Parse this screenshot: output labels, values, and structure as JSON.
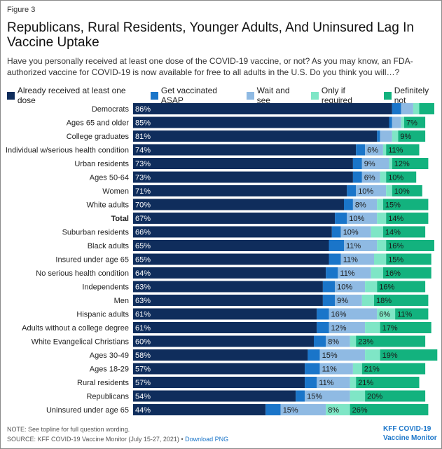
{
  "figure_label": "Figure 3",
  "chart_data": {
    "type": "stacked-bar-horizontal",
    "title": "Republicans, Rural Residents, Younger Adults, And Uninsured Lag In Vaccine Uptake",
    "subtitle": "Have you personally received at least one dose of the COVID-19 vaccine, or not? As you may know, an FDA-authorized vaccine for COVID-19 is now available for free to all adults in the U.S. Do you think you will…?",
    "categories": [
      "Democrats",
      "Ages 65 and older",
      "College graduates",
      "Individual w/serious health condition",
      "Urban residents",
      "Ages 50-64",
      "Women",
      "White adults",
      "Total",
      "Suburban residents",
      "Black adults",
      "Insured under age 65",
      "No serious health condition",
      "Independents",
      "Men",
      "Hispanic adults",
      "Adults without a college degree",
      "White Evangelical Christians",
      "Ages 30-49",
      "Ages 18-29",
      "Rural residents",
      "Republicans",
      "Uninsured under age 65"
    ],
    "series": [
      {
        "name": "Already received at least one dose",
        "color": "#0f2d5c",
        "values": [
          86,
          85,
          81,
          74,
          73,
          73,
          71,
          70,
          67,
          66,
          65,
          65,
          64,
          63,
          63,
          61,
          61,
          60,
          58,
          57,
          57,
          54,
          44
        ],
        "value_labels": [
          "86%",
          "85%",
          "81%",
          "74%",
          "73%",
          "73%",
          "71%",
          "70%",
          "67%",
          "66%",
          "65%",
          "65%",
          "64%",
          "63%",
          "63%",
          "61%",
          "61%",
          "60%",
          "58%",
          "57%",
          "57%",
          "54%",
          "44%"
        ]
      },
      {
        "name": "Get vaccinated ASAP",
        "color": "#1a75c9",
        "values": [
          3,
          1,
          1,
          3,
          3,
          3,
          3,
          3,
          4,
          3,
          5,
          4,
          4,
          4,
          4,
          4,
          4,
          4,
          4,
          5,
          4,
          3,
          5
        ]
      },
      {
        "name": "Wait and see",
        "color": "#8fbae3",
        "values": [
          4,
          3,
          4,
          6,
          9,
          6,
          10,
          8,
          10,
          10,
          11,
          11,
          11,
          10,
          9,
          16,
          12,
          8,
          15,
          11,
          11,
          15,
          15
        ],
        "value_labels": [
          null,
          null,
          null,
          "6%",
          "9%",
          "6%",
          "10%",
          "8%",
          "10%",
          "10%",
          "11%",
          "11%",
          "11%",
          "10%",
          "9%",
          "16%",
          "12%",
          "8%",
          "15%",
          "11%",
          "11%",
          "15%",
          "15%"
        ]
      },
      {
        "name": "Only if required",
        "color": "#7fe6c6",
        "values": [
          2,
          1,
          2,
          1,
          1,
          2,
          2,
          2,
          3,
          4,
          3,
          4,
          4,
          4,
          4,
          6,
          5,
          2,
          5,
          3,
          2,
          5,
          8
        ],
        "value_labels": [
          null,
          null,
          null,
          null,
          null,
          null,
          null,
          null,
          null,
          null,
          null,
          null,
          null,
          null,
          null,
          "6%",
          null,
          null,
          null,
          null,
          null,
          null,
          "8%"
        ]
      },
      {
        "name": "Definitely not",
        "color": "#13b27e",
        "values": [
          5,
          7,
          9,
          11,
          12,
          10,
          10,
          15,
          14,
          14,
          16,
          15,
          16,
          16,
          18,
          11,
          17,
          23,
          19,
          21,
          21,
          20,
          26
        ],
        "value_labels": [
          null,
          "7%",
          "9%",
          "11%",
          "12%",
          "10%",
          "10%",
          "15%",
          "14%",
          "14%",
          "16%",
          "15%",
          "16%",
          "16%",
          "18%",
          "11%",
          "17%",
          "23%",
          "19%",
          "21%",
          "21%",
          "20%",
          "26%"
        ]
      }
    ]
  },
  "footer": {
    "note": "NOTE: See topline for full question wording.",
    "source": "SOURCE: KFF COVID-19 Vaccine Monitor (July 15-27, 2021)",
    "separator": "•",
    "link": "Download PNG",
    "logo_line1": "KFF COVID-19",
    "logo_line2": "Vaccine Monitor"
  }
}
